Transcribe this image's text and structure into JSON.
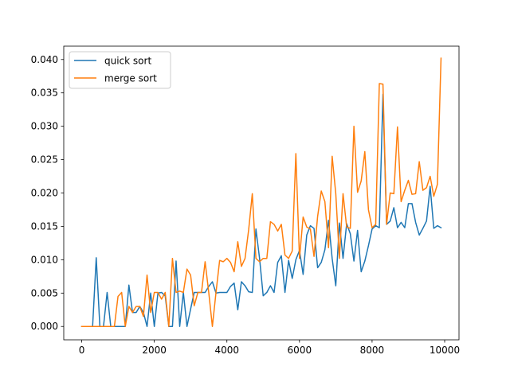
{
  "chart_data": {
    "type": "line",
    "title": "",
    "xlabel": "",
    "ylabel": "",
    "xlim": [
      -495,
      10395
    ],
    "ylim": [
      -0.002,
      0.042
    ],
    "xticks": [
      0,
      2000,
      4000,
      6000,
      8000,
      10000
    ],
    "xtick_labels": [
      "0",
      "2000",
      "4000",
      "6000",
      "8000",
      "10000"
    ],
    "yticks": [
      0.0,
      0.005,
      0.01,
      0.015,
      0.02,
      0.025,
      0.03,
      0.035,
      0.04
    ],
    "ytick_labels": [
      "0.000",
      "0.005",
      "0.010",
      "0.015",
      "0.020",
      "0.025",
      "0.030",
      "0.035",
      "0.040"
    ],
    "grid": false,
    "legend_position": "top-left",
    "x": [
      0,
      100,
      200,
      300,
      400,
      500,
      600,
      700,
      800,
      900,
      1000,
      1100,
      1200,
      1300,
      1400,
      1500,
      1600,
      1700,
      1800,
      1900,
      2000,
      2100,
      2200,
      2300,
      2400,
      2500,
      2600,
      2700,
      2800,
      2900,
      3000,
      3100,
      3200,
      3300,
      3400,
      3500,
      3600,
      3700,
      3800,
      3900,
      4000,
      4100,
      4200,
      4300,
      4400,
      4500,
      4600,
      4700,
      4800,
      4900,
      5000,
      5100,
      5200,
      5300,
      5400,
      5500,
      5600,
      5700,
      5800,
      5900,
      6000,
      6100,
      6200,
      6300,
      6400,
      6500,
      6600,
      6700,
      6800,
      6900,
      7000,
      7100,
      7200,
      7300,
      7400,
      7500,
      7600,
      7700,
      7800,
      7900,
      8000,
      8100,
      8200,
      8300,
      8400,
      8500,
      8600,
      8700,
      8800,
      8900,
      9000,
      9100,
      9200,
      9300,
      9400,
      9500,
      9600,
      9700,
      9800,
      9900
    ],
    "series": [
      {
        "name": "quick sort",
        "color": "#1f77b4",
        "values": [
          0,
          0,
          0,
          0,
          0.0103,
          0,
          0,
          0.0051,
          0,
          0,
          0,
          0,
          0,
          0.0062,
          0.0021,
          0.0021,
          0.003,
          0.0021,
          0,
          0.005,
          0,
          0.005,
          0.0051,
          0.0046,
          0,
          0,
          0.0098,
          0,
          0.0051,
          0,
          0.0026,
          0.0051,
          0.0051,
          0.0051,
          0.0051,
          0.006,
          0.0067,
          0.005,
          0.0051,
          0.0051,
          0.0051,
          0.006,
          0.0065,
          0.0025,
          0.0067,
          0.0061,
          0.0052,
          0.0051,
          0.0146,
          0.0102,
          0.0046,
          0.0051,
          0.0061,
          0.0051,
          0.0096,
          0.0106,
          0.0051,
          0.0099,
          0.0072,
          0.01,
          0.0114,
          0.0078,
          0.0137,
          0.0151,
          0.0147,
          0.0088,
          0.0096,
          0.0115,
          0.0159,
          0.0102,
          0.0061,
          0.0155,
          0.0102,
          0.0154,
          0.0139,
          0.0098,
          0.0144,
          0.0082,
          0.0098,
          0.0121,
          0.0146,
          0.0151,
          0.0148,
          0.0348,
          0.0153,
          0.0158,
          0.0178,
          0.0148,
          0.0156,
          0.0148,
          0.0184,
          0.0184,
          0.0156,
          0.0137,
          0.0147,
          0.0158,
          0.021,
          0.0147,
          0.0151,
          0.0148
        ]
      },
      {
        "name": "merge sort",
        "color": "#ff7f0e",
        "values": [
          0,
          0,
          0,
          0,
          0,
          0,
          0,
          0,
          0,
          0,
          0.0045,
          0.0051,
          0,
          0.003,
          0.0021,
          0.003,
          0.003,
          0.0015,
          0.0077,
          0.0021,
          0.0051,
          0.0051,
          0.0041,
          0.0051,
          0,
          0.0102,
          0.0051,
          0.0053,
          0.0051,
          0.0086,
          0.0077,
          0.0031,
          0.0051,
          0.0051,
          0.0097,
          0.0051,
          0,
          0.0051,
          0.0099,
          0.0097,
          0.0102,
          0.0096,
          0.0082,
          0.0127,
          0.009,
          0.0102,
          0.0145,
          0.0199,
          0.0102,
          0.0097,
          0.0102,
          0.0102,
          0.0157,
          0.0153,
          0.0143,
          0.0153,
          0.0107,
          0.0102,
          0.0113,
          0.0259,
          0.0102,
          0.0164,
          0.0149,
          0.0146,
          0.0105,
          0.0165,
          0.0203,
          0.0187,
          0.0118,
          0.0255,
          0.0199,
          0.0102,
          0.0199,
          0.0149,
          0.0147,
          0.03,
          0.0201,
          0.0218,
          0.0262,
          0.0175,
          0.0148,
          0.0153,
          0.0364,
          0.0363,
          0.0153,
          0.02,
          0.0199,
          0.0299,
          0.0187,
          0.0204,
          0.0219,
          0.0198,
          0.0199,
          0.0247,
          0.0204,
          0.0208,
          0.0225,
          0.0195,
          0.0213,
          0.0402
        ]
      }
    ]
  }
}
